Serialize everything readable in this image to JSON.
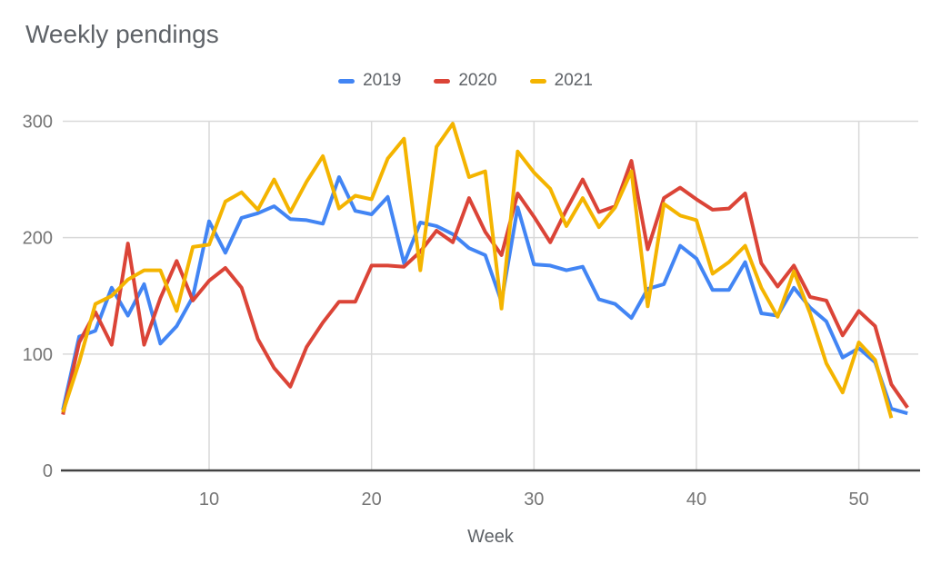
{
  "title": "Weekly pendings",
  "colors": {
    "background": "#ffffff",
    "grid": "#d9d9d9",
    "axis": "#424242",
    "title_text": "#5f6368",
    "tick_text": "#757575",
    "series_2019": "#4285F4",
    "series_2020": "#DB4437",
    "series_2021": "#F4B400"
  },
  "legend": {
    "position": "top-center",
    "items": [
      {
        "label": "2019",
        "color": "#4285F4"
      },
      {
        "label": "2020",
        "color": "#DB4437"
      },
      {
        "label": "2021",
        "color": "#F4B400"
      }
    ]
  },
  "chart_data": {
    "type": "line",
    "title": "Weekly pendings",
    "xlabel": "Week",
    "ylabel": "",
    "xlim": [
      1,
      53.5
    ],
    "ylim": [
      0,
      300
    ],
    "x_ticks": [
      10,
      20,
      30,
      40,
      50
    ],
    "y_ticks": [
      0,
      100,
      200,
      300
    ],
    "grid": true,
    "legend_position": "top",
    "x": [
      1,
      2,
      3,
      4,
      5,
      6,
      7,
      8,
      9,
      10,
      11,
      12,
      13,
      14,
      15,
      16,
      17,
      18,
      19,
      20,
      21,
      22,
      23,
      24,
      25,
      26,
      27,
      28,
      29,
      30,
      31,
      32,
      33,
      34,
      35,
      36,
      37,
      38,
      39,
      40,
      41,
      42,
      43,
      44,
      45,
      46,
      47,
      48,
      49,
      50,
      51,
      52,
      53
    ],
    "series": [
      {
        "name": "2019",
        "color": "#4285F4",
        "values": [
          52,
          115,
          120,
          157,
          133,
          160,
          109,
          124,
          149,
          214,
          187,
          217,
          221,
          227,
          216,
          215,
          212,
          252,
          223,
          220,
          235,
          178,
          213,
          210,
          203,
          191,
          185,
          145,
          226,
          177,
          176,
          172,
          175,
          147,
          143,
          131,
          156,
          160,
          193,
          182,
          155,
          155,
          179,
          135,
          133,
          157,
          140,
          128,
          97,
          105,
          93,
          53,
          49
        ]
      },
      {
        "name": "2020",
        "color": "#DB4437",
        "values": [
          48,
          110,
          136,
          108,
          195,
          108,
          148,
          180,
          146,
          163,
          174,
          157,
          113,
          88,
          72,
          106,
          127,
          145,
          145,
          176,
          176,
          175,
          188,
          206,
          196,
          234,
          205,
          185,
          238,
          218,
          196,
          224,
          250,
          222,
          227,
          266,
          190,
          234,
          243,
          233,
          224,
          225,
          238,
          178,
          158,
          176,
          149,
          146,
          116,
          137,
          124,
          74,
          54
        ]
      },
      {
        "name": "2021",
        "color": "#F4B400",
        "values": [
          50,
          93,
          143,
          150,
          164,
          172,
          172,
          137,
          192,
          194,
          231,
          239,
          224,
          250,
          222,
          248,
          270,
          225,
          236,
          233,
          268,
          285,
          172,
          278,
          298,
          252,
          257,
          139,
          274,
          256,
          242,
          210,
          234,
          209,
          226,
          257,
          141,
          229,
          219,
          215,
          169,
          179,
          193,
          157,
          132,
          171,
          135,
          92,
          67,
          110,
          95,
          45,
          null
        ]
      }
    ]
  }
}
